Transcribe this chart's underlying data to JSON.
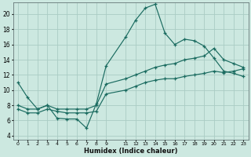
{
  "xlabel": "Humidex (Indice chaleur)",
  "background_color": "#cce8e0",
  "grid_color": "#aaccc4",
  "line_color": "#1a6b60",
  "xlim": [
    -0.5,
    23.5
  ],
  "ylim": [
    3.5,
    21.5
  ],
  "xticks": [
    0,
    1,
    2,
    3,
    4,
    5,
    6,
    7,
    8,
    9,
    11,
    12,
    13,
    14,
    15,
    16,
    17,
    18,
    19,
    20,
    21,
    22,
    23
  ],
  "yticks": [
    4,
    6,
    8,
    10,
    12,
    14,
    16,
    18,
    20
  ],
  "line1_x": [
    0,
    1,
    2,
    3,
    4,
    5,
    6,
    7,
    8,
    9,
    11,
    12,
    13,
    14,
    15,
    16,
    17,
    18,
    19,
    20,
    21,
    22,
    23
  ],
  "line1_y": [
    11,
    9,
    7.5,
    8,
    6.3,
    6.2,
    6.2,
    5.0,
    8.2,
    13.2,
    17,
    19.2,
    20.8,
    21.3,
    17.5,
    16.0,
    16.7,
    16.5,
    15.8,
    14.2,
    12.5,
    12.2,
    11.8
  ],
  "line2_x": [
    0,
    1,
    2,
    3,
    4,
    5,
    6,
    7,
    8,
    9,
    11,
    12,
    13,
    14,
    15,
    16,
    17,
    18,
    19,
    20,
    21,
    22,
    23
  ],
  "line2_y": [
    8.0,
    7.5,
    7.5,
    8.0,
    7.5,
    7.5,
    7.5,
    7.5,
    8.0,
    10.8,
    11.5,
    12.0,
    12.5,
    13.0,
    13.3,
    13.5,
    14.0,
    14.2,
    14.5,
    15.5,
    14.0,
    13.5,
    13.0
  ],
  "line3_x": [
    0,
    1,
    2,
    3,
    4,
    5,
    6,
    7,
    8,
    9,
    11,
    12,
    13,
    14,
    15,
    16,
    17,
    18,
    19,
    20,
    21,
    22,
    23
  ],
  "line3_y": [
    7.5,
    7.0,
    7.0,
    7.5,
    7.2,
    7.0,
    7.0,
    7.0,
    7.2,
    9.5,
    10.0,
    10.5,
    11.0,
    11.3,
    11.5,
    11.5,
    11.8,
    12.0,
    12.2,
    12.5,
    12.3,
    12.5,
    12.8
  ]
}
